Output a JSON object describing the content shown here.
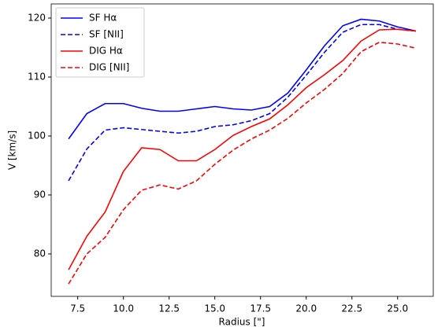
{
  "chart_data": {
    "type": "line",
    "xlabel": "Radius [\"]",
    "ylabel": "V [km/s]",
    "x": [
      7,
      8,
      9,
      10,
      11,
      12,
      13,
      14,
      15,
      16,
      17,
      18,
      19,
      20,
      21,
      22,
      23,
      24,
      25,
      26
    ],
    "series": [
      {
        "name": "SF Hα",
        "color": "#0000ff",
        "dashed": false,
        "values": [
          99.5,
          103.8,
          105.5,
          105.5,
          104.7,
          104.2,
          104.2,
          104.6,
          105.0,
          104.6,
          104.4,
          105.0,
          107.3,
          111.2,
          115.3,
          118.7,
          119.8,
          119.5,
          118.5,
          117.8
        ]
      },
      {
        "name": "SF [NII]",
        "color": "#0000ff",
        "dashed": true,
        "values": [
          92.4,
          97.8,
          101.0,
          101.4,
          101.1,
          100.8,
          100.5,
          100.8,
          101.6,
          101.9,
          102.6,
          103.8,
          106.6,
          110.3,
          114.2,
          117.6,
          118.9,
          118.9,
          118.1,
          117.8
        ]
      },
      {
        "name": "DIG Hα",
        "color": "#ff0000",
        "dashed": false,
        "values": [
          77.3,
          83.0,
          87.1,
          94.0,
          98.0,
          97.7,
          95.8,
          95.8,
          97.7,
          100.1,
          101.6,
          102.9,
          105.3,
          108.2,
          110.4,
          112.8,
          116.1,
          118.0,
          118.1,
          117.8
        ]
      },
      {
        "name": "DIG [NII]",
        "color": "#ff0000",
        "dashed": true,
        "values": [
          74.9,
          80.0,
          82.8,
          87.5,
          90.8,
          91.7,
          91.0,
          92.4,
          95.2,
          97.6,
          99.5,
          101.0,
          103.0,
          105.6,
          107.9,
          110.6,
          114.3,
          115.9,
          115.6,
          114.9
        ]
      }
    ],
    "xlim": [
      6.05,
      26.95
    ],
    "xticks": [
      {
        "value": 7.5,
        "label": "7.5"
      },
      {
        "value": 10,
        "label": "10.0"
      },
      {
        "value": 12.5,
        "label": "12.5"
      },
      {
        "value": 15,
        "label": "15.0"
      },
      {
        "value": 17.5,
        "label": "17.5"
      },
      {
        "value": 20,
        "label": "20.0"
      },
      {
        "value": 22.5,
        "label": "22.5"
      },
      {
        "value": 25,
        "label": "25.0"
      }
    ],
    "ylim": [
      72.8,
      122.4
    ],
    "yticks": [
      80,
      90,
      100,
      110,
      120
    ],
    "legend": "upper left"
  }
}
